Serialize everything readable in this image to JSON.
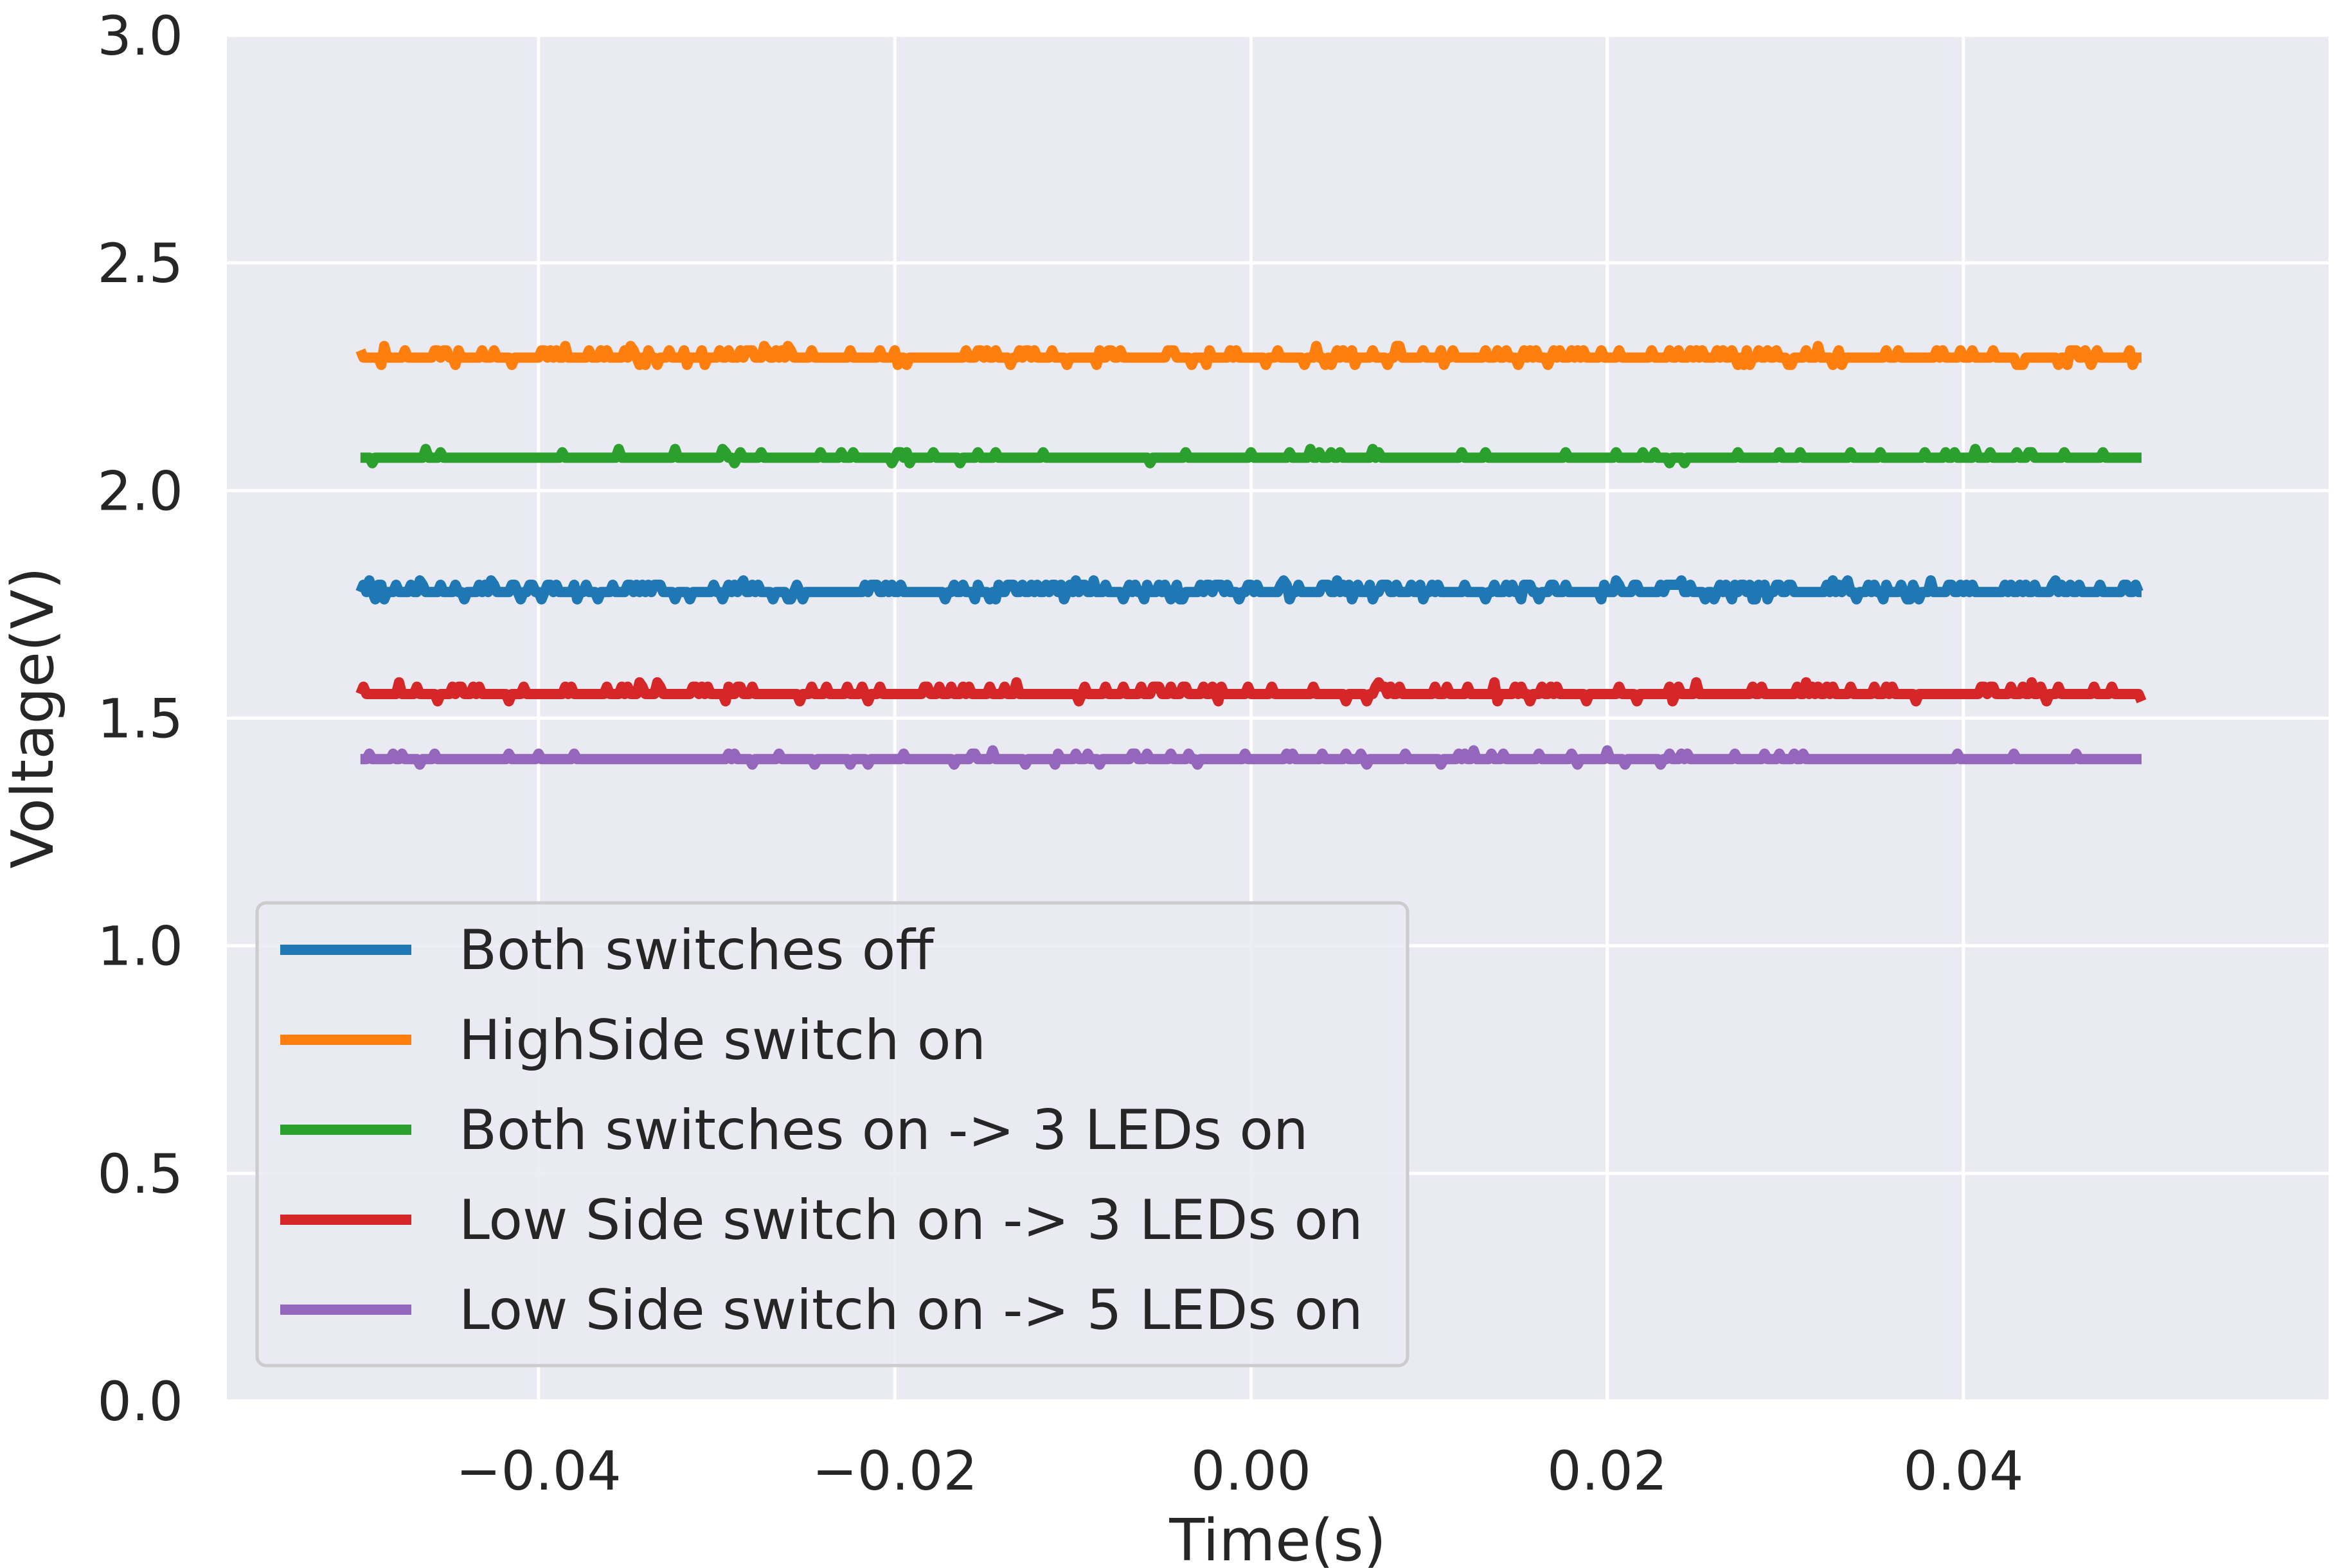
{
  "chart_data": {
    "type": "line",
    "title": "",
    "xlabel": "Time(s)",
    "ylabel": "Voltage(V)",
    "xlim": [
      -0.0575,
      0.0605
    ],
    "ylim": [
      0.0,
      3.0
    ],
    "x_range": [
      -0.05,
      0.05
    ],
    "xticks": [
      -0.04,
      -0.02,
      0.0,
      0.02,
      0.04
    ],
    "xtick_labels": [
      "−0.04",
      "−0.02",
      "0.00",
      "0.02",
      "0.04"
    ],
    "yticks": [
      0.0,
      0.5,
      1.0,
      1.5,
      2.0,
      2.5,
      3.0
    ],
    "ytick_labels": [
      "0.0",
      "0.5",
      "1.0",
      "1.5",
      "2.0",
      "2.5",
      "3.0"
    ],
    "grid": true,
    "legend_position": "lower-left",
    "background_color": "#eaeaf2",
    "grid_color": "#ffffff",
    "series": [
      {
        "name": "Both switches off",
        "color": "#1f77b4",
        "level": 1.777,
        "noise": 0.016,
        "spike_rate": 0.5
      },
      {
        "name": "HighSide switch on",
        "color": "#ff7f0e",
        "level": 2.292,
        "noise": 0.016,
        "spike_rate": 0.4
      },
      {
        "name": "Both switches on -> 3 LEDs on",
        "color": "#2ca02c",
        "level": 2.072,
        "noise": 0.012,
        "spike_rate": 0.15
      },
      {
        "name": "Low Side switch on -> 3 LEDs on",
        "color": "#d62728",
        "level": 1.553,
        "noise": 0.016,
        "spike_rate": 0.3
      },
      {
        "name": "Low Side switch on -> 5 LEDs on",
        "color": "#9467bd",
        "level": 1.41,
        "noise": 0.012,
        "spike_rate": 0.15
      }
    ]
  }
}
